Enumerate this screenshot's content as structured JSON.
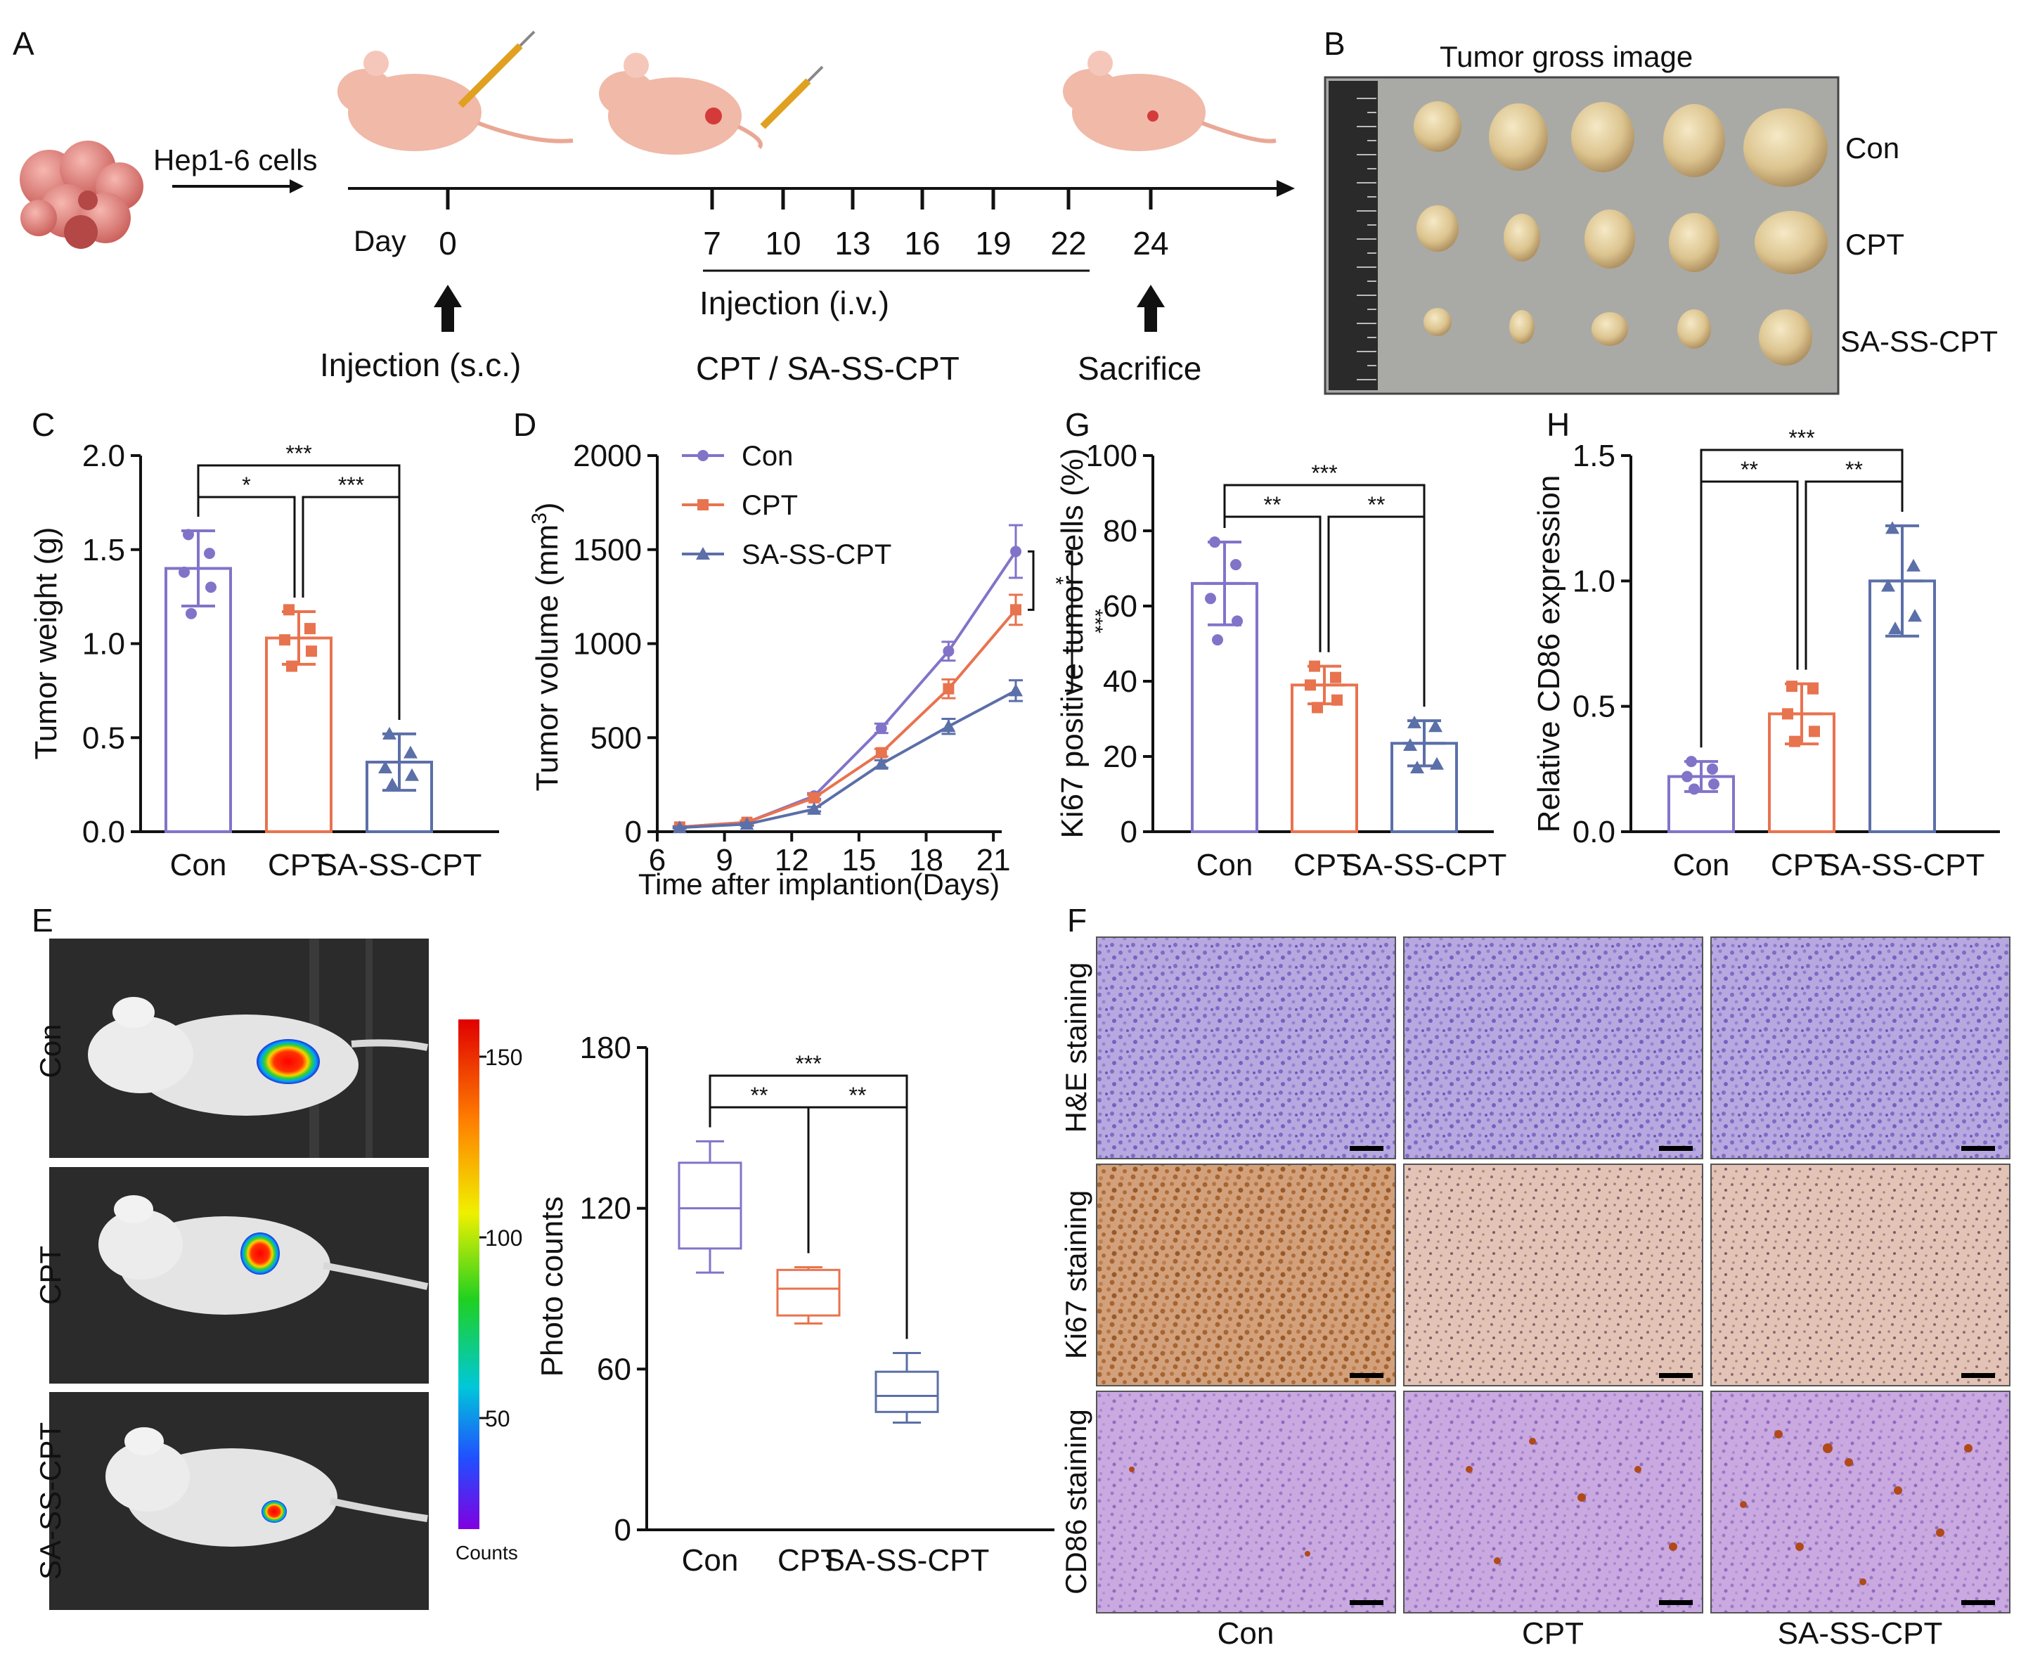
{
  "colors": {
    "con": "#8273c9",
    "cpt": "#e8734f",
    "sa": "#5b6fa8"
  },
  "panels": {
    "A": {
      "label": "A",
      "cells_label": "Hep1-6 cells",
      "day_label": "Day",
      "days": [
        "0",
        "7",
        "10",
        "13",
        "16",
        "19",
        "22",
        "24"
      ],
      "injection_sc": "Injection (s.c.)",
      "injection_iv": "Injection (i.v.)",
      "treatment": "CPT / SA-SS-CPT",
      "sacrifice": "Sacrifice"
    },
    "B": {
      "label": "B",
      "title": "Tumor gross image",
      "rows": [
        "Con",
        "CPT",
        "SA-SS-CPT"
      ]
    },
    "C": {
      "label": "C"
    },
    "D": {
      "label": "D"
    },
    "G": {
      "label": "G"
    },
    "H": {
      "label": "H"
    },
    "E": {
      "label": "E",
      "rows": [
        "Con",
        "CPT",
        "SA-SS-CPT"
      ],
      "colorbar_ticks": [
        "150",
        "100",
        "50"
      ],
      "colorbar_label": "Counts"
    },
    "F": {
      "label": "F",
      "row_labels": [
        "H&E staining",
        "Ki67 staining",
        "CD86 staining"
      ],
      "col_labels": [
        "Con",
        "CPT",
        "SA-SS-CPT"
      ]
    }
  },
  "chart_data": [
    {
      "id": "C",
      "type": "bar",
      "categories": [
        "Con",
        "CPT",
        "SA-SS-CPT"
      ],
      "values": [
        1.4,
        1.03,
        0.37
      ],
      "errors": [
        0.2,
        0.14,
        0.15
      ],
      "points": [
        [
          1.58,
          1.48,
          1.38,
          1.3,
          1.16
        ],
        [
          1.18,
          1.08,
          1.02,
          0.96,
          0.88
        ],
        [
          0.52,
          0.42,
          0.34,
          0.3,
          0.25
        ]
      ],
      "ylabel": "Tumor weight (g)",
      "ylim": [
        0,
        2.0
      ],
      "yticks": [
        "0.0",
        "0.5",
        "1.0",
        "1.5",
        "2.0"
      ],
      "significance": [
        {
          "from": 0,
          "to": 1,
          "label": "*"
        },
        {
          "from": 1,
          "to": 2,
          "label": "***"
        },
        {
          "from": 0,
          "to": 2,
          "label": "***"
        }
      ]
    },
    {
      "id": "D",
      "type": "line",
      "x": [
        7,
        10,
        13,
        16,
        19,
        22
      ],
      "series": [
        {
          "name": "Con",
          "values": [
            25,
            50,
            190,
            550,
            960,
            1490
          ],
          "errors": [
            5,
            10,
            15,
            25,
            50,
            140
          ]
        },
        {
          "name": "CPT",
          "values": [
            25,
            50,
            180,
            420,
            760,
            1180
          ],
          "errors": [
            5,
            10,
            15,
            20,
            50,
            80
          ]
        },
        {
          "name": "SA-SS-CPT",
          "values": [
            22,
            40,
            120,
            360,
            560,
            750
          ],
          "errors": [
            5,
            8,
            12,
            20,
            40,
            55
          ]
        }
      ],
      "xlabel": "Time after implantion(Days)",
      "ylabel": "Tumor volume (mm",
      "ylabel_superscript": "3",
      "ylabel_close": ")",
      "xlim": [
        6,
        22
      ],
      "ylim": [
        0,
        2000
      ],
      "xticks": [
        "6",
        "9",
        "12",
        "15",
        "18",
        "21"
      ],
      "yticks": [
        "0",
        "500",
        "1000",
        "1500",
        "2000"
      ],
      "significance": [
        {
          "label": "*"
        },
        {
          "label": "***"
        }
      ]
    },
    {
      "id": "G",
      "type": "bar",
      "categories": [
        "Con",
        "CPT",
        "SA-SS-CPT"
      ],
      "values": [
        66,
        39,
        23.5
      ],
      "errors": [
        11,
        5,
        6
      ],
      "points": [
        [
          77,
          71,
          62,
          56,
          51
        ],
        [
          44,
          41,
          39,
          35,
          33
        ],
        [
          29,
          28,
          23,
          18,
          17
        ]
      ],
      "ylabel": "Ki67 positive tumor cells (%)",
      "ylim": [
        0,
        100
      ],
      "yticks": [
        "0",
        "20",
        "40",
        "60",
        "80",
        "100"
      ],
      "significance": [
        {
          "from": 0,
          "to": 1,
          "label": "**"
        },
        {
          "from": 1,
          "to": 2,
          "label": "**"
        },
        {
          "from": 0,
          "to": 2,
          "label": "***"
        }
      ]
    },
    {
      "id": "H",
      "type": "bar",
      "categories": [
        "Con",
        "CPT",
        "SA-SS-CPT"
      ],
      "values": [
        0.22,
        0.47,
        1.0
      ],
      "errors": [
        0.06,
        0.12,
        0.22
      ],
      "points": [
        [
          0.28,
          0.25,
          0.22,
          0.19,
          0.17
        ],
        [
          0.58,
          0.57,
          0.47,
          0.4,
          0.36
        ],
        [
          1.21,
          1.06,
          0.98,
          0.86,
          0.81
        ]
      ],
      "ylabel": "Relative CD86 expression",
      "ylim": [
        0,
        1.5
      ],
      "yticks": [
        "0.0",
        "0.5",
        "1.0",
        "1.5"
      ],
      "significance": [
        {
          "from": 0,
          "to": 1,
          "label": "**"
        },
        {
          "from": 1,
          "to": 2,
          "label": "**"
        },
        {
          "from": 0,
          "to": 2,
          "label": "***"
        }
      ]
    },
    {
      "id": "E2",
      "type": "box",
      "categories": [
        "Con",
        "CPT",
        "SA-SS-CPT"
      ],
      "boxes": [
        {
          "min": 96,
          "q1": 105,
          "median": 120,
          "q3": 137,
          "max": 145
        },
        {
          "min": 77,
          "q1": 80,
          "median": 90,
          "q3": 97,
          "max": 98
        },
        {
          "min": 40,
          "q1": 44,
          "median": 50,
          "q3": 59,
          "max": 66
        }
      ],
      "ylabel": "Photo counts",
      "ylim": [
        0,
        180
      ],
      "yticks": [
        "0",
        "60",
        "120",
        "180"
      ],
      "significance": [
        {
          "from": 0,
          "to": 1,
          "label": "**"
        },
        {
          "from": 1,
          "to": 2,
          "label": "**"
        },
        {
          "from": 0,
          "to": 2,
          "label": "***"
        }
      ]
    }
  ]
}
